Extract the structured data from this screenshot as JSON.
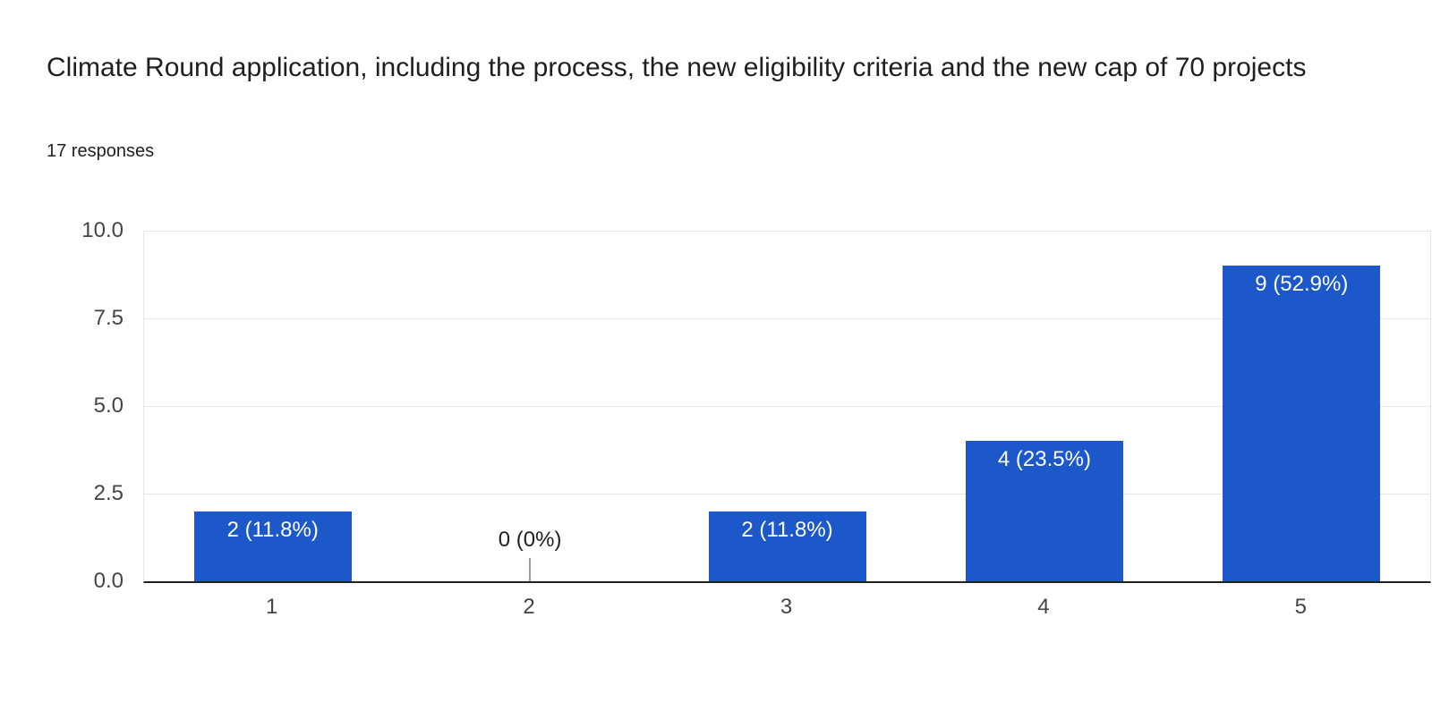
{
  "header": {
    "title": "Climate Round application, including the process, the new eligibility criteria and the new cap of 70 projects",
    "responses_count": "17 responses"
  },
  "chart_data": {
    "type": "bar",
    "title": "Climate Round application, including the process, the new eligibility criteria and the new cap of 70 projects",
    "subtitle": "17 responses",
    "categories": [
      "1",
      "2",
      "3",
      "4",
      "5"
    ],
    "values": [
      2,
      0,
      2,
      4,
      9
    ],
    "percentages": [
      "11.8%",
      "0%",
      "11.8%",
      "23.5%",
      "52.9%"
    ],
    "bar_labels": [
      "2 (11.8%)",
      "0 (0%)",
      "2 (11.8%)",
      "4 (23.5%)",
      "9 (52.9%)"
    ],
    "xlabel": "",
    "ylabel": "",
    "ylim": [
      0,
      10
    ],
    "yticks": [
      "10.0",
      "7.5",
      "5.0",
      "2.5",
      "0.0"
    ],
    "grid": true,
    "legend": "none",
    "colors": {
      "bar": "#1c58c9",
      "inside_annotation": "#ffffff",
      "outside_annotation": "#212121",
      "gridline": "#e6e6e6",
      "baseline": "#212121",
      "axis_text": "#444444",
      "stem": "#9e9e9e"
    }
  }
}
